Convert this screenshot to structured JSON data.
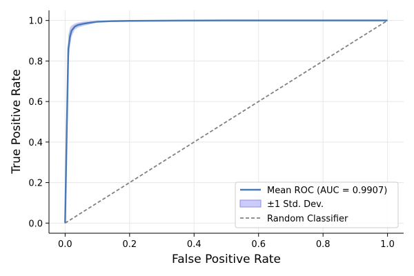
{
  "chart_data": {
    "type": "line",
    "title": "",
    "xlabel": "False Positive Rate",
    "ylabel": "True Positive Rate",
    "xlim": [
      -0.05,
      1.05
    ],
    "ylim": [
      -0.05,
      1.05
    ],
    "xticks": [
      0.0,
      0.2,
      0.4,
      0.6,
      0.8,
      1.0
    ],
    "yticks": [
      0.0,
      0.2,
      0.4,
      0.6,
      0.8,
      1.0
    ],
    "xtick_labels": [
      "0.0",
      "0.2",
      "0.4",
      "0.6",
      "0.8",
      "1.0"
    ],
    "ytick_labels": [
      "0.0",
      "0.2",
      "0.4",
      "0.6",
      "0.8",
      "1.0"
    ],
    "grid": true,
    "legend_position": "lower-right",
    "series": [
      {
        "name": "Mean ROC (AUC = 0.9907)",
        "kind": "line",
        "color": "#4a7ab5",
        "x": [
          0.0,
          0.005,
          0.01,
          0.015,
          0.02,
          0.03,
          0.04,
          0.06,
          0.08,
          0.1,
          0.15,
          0.2,
          0.3,
          0.5,
          0.7,
          1.0
        ],
        "y": [
          0.0,
          0.45,
          0.86,
          0.92,
          0.95,
          0.97,
          0.978,
          0.985,
          0.99,
          0.994,
          0.997,
          0.998,
          0.999,
          1.0,
          1.0,
          1.0
        ]
      },
      {
        "name": "±1 Std. Dev.",
        "kind": "band",
        "color": "#8c8cf2",
        "x": [
          0.0,
          0.005,
          0.01,
          0.015,
          0.02,
          0.03,
          0.04,
          0.06,
          0.08,
          0.1,
          0.15,
          0.2,
          0.3,
          0.5,
          0.7,
          1.0
        ],
        "upper": [
          0.0,
          0.55,
          0.93,
          0.965,
          0.975,
          0.985,
          0.99,
          0.995,
          0.997,
          0.998,
          0.999,
          1.0,
          1.0,
          1.0,
          1.0,
          1.0
        ],
        "lower": [
          0.0,
          0.35,
          0.79,
          0.87,
          0.92,
          0.955,
          0.965,
          0.975,
          0.982,
          0.99,
          0.995,
          0.996,
          0.998,
          1.0,
          1.0,
          1.0
        ]
      },
      {
        "name": "Random Classifier",
        "kind": "dashed",
        "color": "#808080",
        "x": [
          0.0,
          1.0
        ],
        "y": [
          0.0,
          1.0
        ]
      }
    ]
  }
}
